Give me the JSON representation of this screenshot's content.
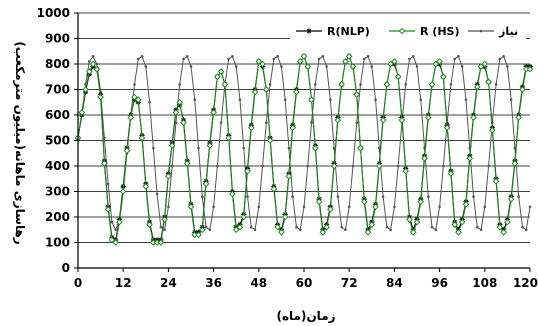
{
  "chart_data": {
    "type": "line",
    "title": "",
    "xlabel": "زمان(ماه)",
    "ylabel": "رهاسازی ماهانه(میلیون مترمکعب)",
    "xlim": [
      0,
      120
    ],
    "ylim": [
      0,
      1000
    ],
    "xticks": [
      "0",
      "12",
      "24",
      "36",
      "48",
      "60",
      "72",
      "84",
      "96",
      "108",
      "120"
    ],
    "yticks": [
      "0",
      "100",
      "200",
      "300",
      "400",
      "500",
      "600",
      "700",
      "800",
      "900",
      "1000"
    ],
    "grid": "horizontal",
    "legend_position": "top",
    "series": [
      {
        "name": "R(NLP)",
        "color": "#000000",
        "marker": "star",
        "x": [
          0,
          1,
          2,
          3,
          4,
          5,
          6,
          7,
          8,
          9,
          10,
          11,
          12,
          13,
          14,
          15,
          16,
          17,
          18,
          19,
          20,
          21,
          22,
          23,
          24,
          25,
          26,
          27,
          28,
          29,
          30,
          31,
          32,
          33,
          34,
          35,
          36,
          37,
          38,
          39,
          40,
          41,
          42,
          43,
          44,
          45,
          46,
          47,
          48,
          49,
          50,
          51,
          52,
          53,
          54,
          55,
          56,
          57,
          58,
          59,
          60,
          61,
          62,
          63,
          64,
          65,
          66,
          67,
          68,
          69,
          70,
          71,
          72,
          73,
          74,
          75,
          76,
          77,
          78,
          79,
          80,
          81,
          82,
          83,
          84,
          85,
          86,
          87,
          88,
          89,
          90,
          91,
          92,
          93,
          94,
          95,
          96,
          97,
          98,
          99,
          100,
          101,
          102,
          103,
          104,
          105,
          106,
          107,
          108,
          109,
          110,
          111,
          112,
          113,
          114,
          115,
          116,
          117,
          118,
          119,
          120
        ],
        "values": [
          510,
          600,
          690,
          760,
          790,
          780,
          680,
          420,
          240,
          120,
          110,
          190,
          320,
          470,
          600,
          660,
          650,
          520,
          330,
          180,
          110,
          110,
          110,
          200,
          370,
          490,
          620,
          640,
          580,
          420,
          250,
          140,
          140,
          160,
          340,
          490,
          620,
          750,
          770,
          720,
          520,
          300,
          160,
          170,
          210,
          390,
          560,
          700,
          810,
          790,
          700,
          510,
          320,
          170,
          150,
          210,
          370,
          560,
          700,
          810,
          830,
          790,
          660,
          480,
          270,
          150,
          170,
          240,
          410,
          590,
          720,
          810,
          830,
          790,
          680,
          470,
          270,
          150,
          180,
          250,
          410,
          590,
          720,
          800,
          800,
          750,
          590,
          390,
          200,
          150,
          190,
          270,
          440,
          600,
          720,
          800,
          800,
          750,
          560,
          380,
          180,
          150,
          190,
          260,
          440,
          600,
          720,
          790,
          790,
          730,
          550,
          350,
          170,
          150,
          190,
          280,
          420,
          600,
          710,
          790,
          790
        ]
      },
      {
        "name": "R (HS)",
        "color": "#1e8c1e",
        "marker": "diamond",
        "x": [
          0,
          1,
          2,
          3,
          4,
          5,
          6,
          7,
          8,
          9,
          10,
          11,
          12,
          13,
          14,
          15,
          16,
          17,
          18,
          19,
          20,
          21,
          22,
          23,
          24,
          25,
          26,
          27,
          28,
          29,
          30,
          31,
          32,
          33,
          34,
          35,
          36,
          37,
          38,
          39,
          40,
          41,
          42,
          43,
          44,
          45,
          46,
          47,
          48,
          49,
          50,
          51,
          52,
          53,
          54,
          55,
          56,
          57,
          58,
          59,
          60,
          61,
          62,
          63,
          64,
          65,
          66,
          67,
          68,
          69,
          70,
          71,
          72,
          73,
          74,
          75,
          76,
          77,
          78,
          79,
          80,
          81,
          82,
          83,
          84,
          85,
          86,
          87,
          88,
          89,
          90,
          91,
          92,
          93,
          94,
          95,
          96,
          97,
          98,
          99,
          100,
          101,
          102,
          103,
          104,
          105,
          106,
          107,
          108,
          109,
          110,
          111,
          112,
          113,
          114,
          115,
          116,
          117,
          118,
          119,
          120
        ],
        "values": [
          510,
          610,
          700,
          770,
          800,
          780,
          670,
          410,
          230,
          110,
          100,
          180,
          300,
          460,
          590,
          670,
          660,
          510,
          320,
          170,
          100,
          100,
          100,
          190,
          360,
          480,
          610,
          650,
          570,
          410,
          240,
          130,
          130,
          150,
          330,
          480,
          610,
          750,
          770,
          720,
          510,
          290,
          150,
          160,
          200,
          380,
          550,
          690,
          810,
          800,
          700,
          500,
          310,
          160,
          140,
          200,
          360,
          550,
          690,
          810,
          830,
          790,
          660,
          470,
          260,
          140,
          160,
          230,
          400,
          580,
          720,
          810,
          830,
          790,
          680,
          470,
          260,
          140,
          170,
          240,
          400,
          580,
          720,
          800,
          810,
          750,
          580,
          380,
          190,
          140,
          180,
          260,
          430,
          590,
          720,
          800,
          810,
          750,
          550,
          370,
          170,
          140,
          180,
          250,
          430,
          590,
          710,
          790,
          800,
          730,
          540,
          340,
          160,
          140,
          180,
          270,
          410,
          590,
          700,
          780,
          780
        ]
      },
      {
        "name": "نیاز",
        "color": "#555555",
        "marker": "dot",
        "x": [
          0,
          1,
          2,
          3,
          4,
          5,
          6,
          7,
          8,
          9,
          10,
          11,
          12,
          13,
          14,
          15,
          16,
          17,
          18,
          19,
          20,
          21,
          22,
          23,
          24,
          25,
          26,
          27,
          28,
          29,
          30,
          31,
          32,
          33,
          34,
          35,
          36,
          37,
          38,
          39,
          40,
          41,
          42,
          43,
          44,
          45,
          46,
          47,
          48,
          49,
          50,
          51,
          52,
          53,
          54,
          55,
          56,
          57,
          58,
          59,
          60,
          61,
          62,
          63,
          64,
          65,
          66,
          67,
          68,
          69,
          70,
          71,
          72,
          73,
          74,
          75,
          76,
          77,
          78,
          79,
          80,
          81,
          82,
          83,
          84,
          85,
          86,
          87,
          88,
          89,
          90,
          91,
          92,
          93,
          94,
          95,
          96,
          97,
          98,
          99,
          100,
          101,
          102,
          103,
          104,
          105,
          106,
          107,
          108,
          109,
          110,
          111,
          112,
          113,
          114,
          115,
          116,
          117,
          118,
          119,
          120
        ],
        "values": [
          510,
          600,
          720,
          810,
          830,
          800,
          690,
          510,
          330,
          180,
          150,
          190,
          300,
          450,
          600,
          720,
          820,
          830,
          790,
          650,
          470,
          290,
          160,
          150,
          240,
          400,
          570,
          720,
          820,
          830,
          790,
          660,
          470,
          280,
          160,
          150,
          240,
          400,
          570,
          720,
          820,
          830,
          790,
          660,
          470,
          280,
          160,
          150,
          240,
          400,
          570,
          720,
          820,
          830,
          790,
          660,
          470,
          280,
          160,
          150,
          240,
          400,
          570,
          720,
          820,
          830,
          790,
          660,
          470,
          280,
          160,
          150,
          240,
          400,
          570,
          720,
          820,
          830,
          790,
          660,
          470,
          280,
          160,
          150,
          240,
          400,
          570,
          720,
          820,
          830,
          790,
          660,
          470,
          280,
          160,
          150,
          240,
          400,
          570,
          720,
          820,
          830,
          790,
          660,
          470,
          280,
          160,
          150,
          240,
          400,
          570,
          720,
          820,
          830,
          790,
          660,
          470,
          280,
          160,
          150,
          240
        ]
      }
    ]
  }
}
